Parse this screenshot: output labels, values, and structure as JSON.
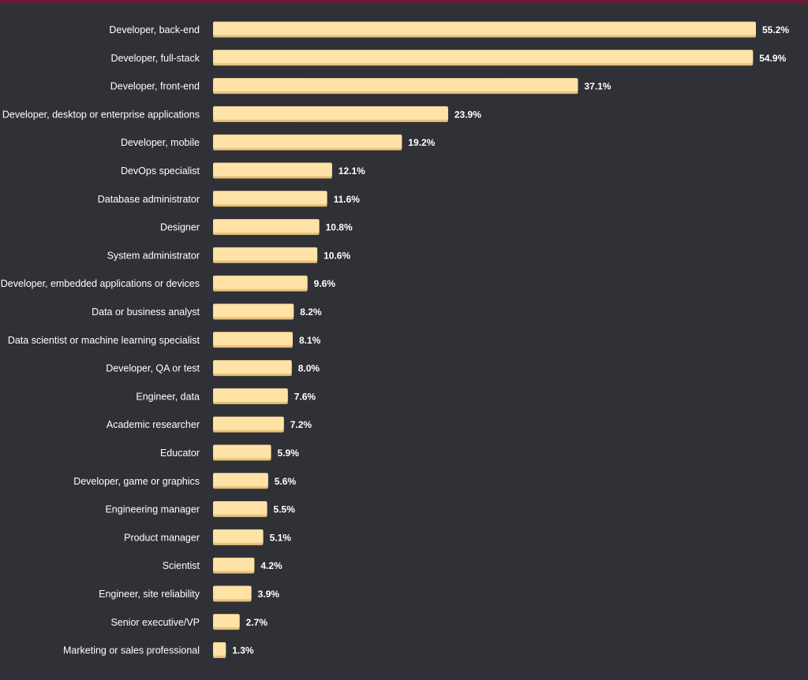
{
  "colors": {
    "background": "#2f3136",
    "accent_bar": "#6b1a3a",
    "bar_fill": "#ffe2a6",
    "bar_shade": "#e8c17a",
    "text": "#ffffff"
  },
  "chart_data": {
    "type": "bar",
    "orientation": "horizontal",
    "title": "",
    "xlabel": "",
    "ylabel": "",
    "xlim": [
      0,
      55.2
    ],
    "grid": false,
    "legend": "none",
    "value_suffix": "%",
    "categories": [
      "Developer, back-end",
      "Developer, full-stack",
      "Developer, front-end",
      "Developer, desktop or enterprise applications",
      "Developer, mobile",
      "DevOps specialist",
      "Database administrator",
      "Designer",
      "System administrator",
      "Developer, embedded applications or devices",
      "Data or business analyst",
      "Data scientist or machine learning specialist",
      "Developer, QA or test",
      "Engineer, data",
      "Academic researcher",
      "Educator",
      "Developer, game or graphics",
      "Engineering manager",
      "Product manager",
      "Scientist",
      "Engineer, site reliability",
      "Senior executive/VP",
      "Marketing or sales professional"
    ],
    "values": [
      55.2,
      54.9,
      37.1,
      23.9,
      19.2,
      12.1,
      11.6,
      10.8,
      10.6,
      9.6,
      8.2,
      8.1,
      8.0,
      7.6,
      7.2,
      5.9,
      5.6,
      5.5,
      5.1,
      4.2,
      3.9,
      2.7,
      1.3
    ],
    "value_labels": [
      "55.2%",
      "54.9%",
      "37.1%",
      "23.9%",
      "19.2%",
      "12.1%",
      "11.6%",
      "10.8%",
      "10.6%",
      "9.6%",
      "8.2%",
      "8.1%",
      "8.0%",
      "7.6%",
      "7.2%",
      "5.9%",
      "5.6%",
      "5.5%",
      "5.1%",
      "4.2%",
      "3.9%",
      "2.7%",
      "1.3%"
    ]
  }
}
